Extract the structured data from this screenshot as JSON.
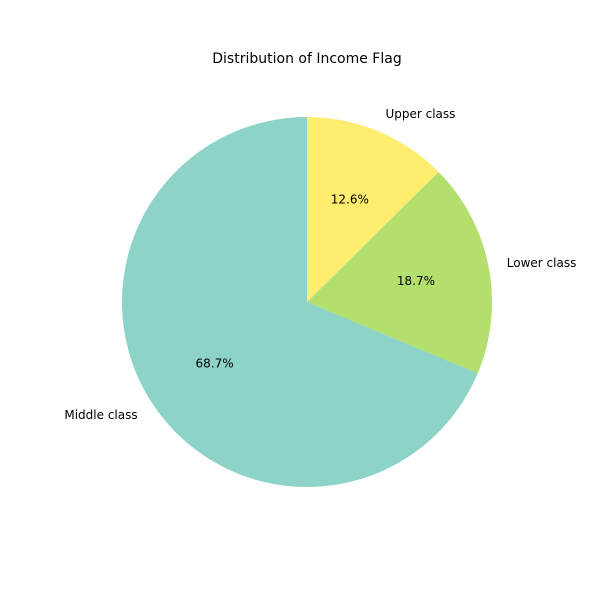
{
  "chart_data": {
    "type": "pie",
    "title": "Distribution of Income Flag",
    "slices": [
      {
        "label": "Upper class",
        "value": 12.6,
        "pct_label": "12.6%",
        "color": "#ffed6f"
      },
      {
        "label": "Lower class",
        "value": 18.7,
        "pct_label": "18.7%",
        "color": "#b3e06d"
      },
      {
        "label": "Middle class",
        "value": 68.7,
        "pct_label": "68.7%",
        "color": "#8dd3c7"
      }
    ],
    "start_angle_deg": 90,
    "direction": "clockwise",
    "legend": "none"
  }
}
